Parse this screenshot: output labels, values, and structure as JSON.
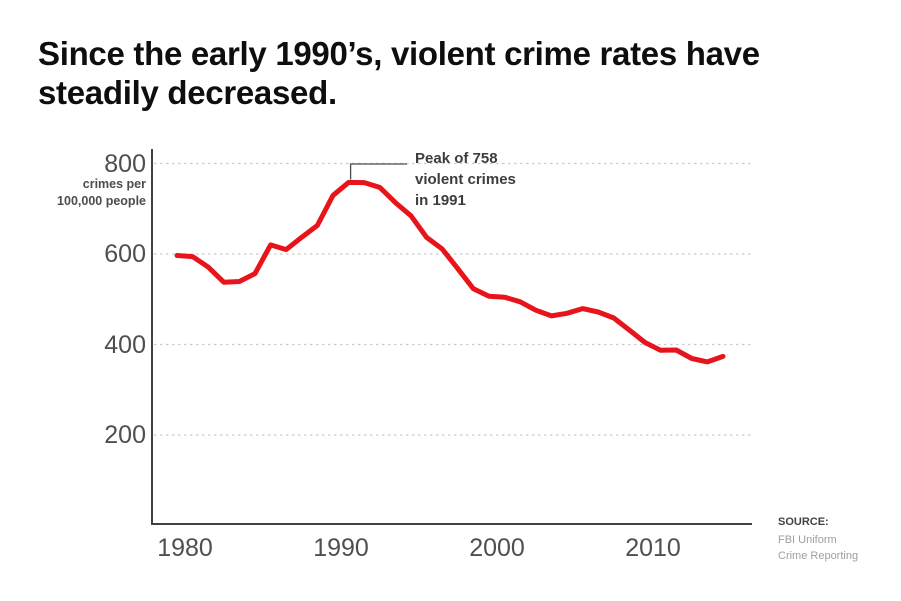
{
  "title": "Since the early 1990’s, violent crime rates have\nsteadily decreased.",
  "y_axis": {
    "unit_label": "crimes per\n100,000 people",
    "tick_labels": [
      "800",
      "600",
      "400",
      "200"
    ]
  },
  "x_axis": {
    "tick_labels": [
      "1980",
      "1990",
      "2000",
      "2010"
    ]
  },
  "annotation": {
    "text": "Peak of 758\nviolent crimes\nin 1991",
    "anchor_year": 1991,
    "anchor_value": 758.2
  },
  "source": {
    "label": "SOURCE:",
    "text": "FBI Uniform\nCrime Reporting"
  },
  "colors": {
    "line_red": "#e8141b",
    "grid_gray": "#cbcbcb",
    "axis_dark": "#404040",
    "leader_line": "#4a4a4a",
    "tick_text": "#4f4f4f",
    "title_text": "#0e0e0e",
    "annotation_text": "#3d3d3d",
    "source_text": "#9e9e9e"
  },
  "chart_data": {
    "type": "line",
    "title": "Since the early 1990’s, violent crime rates have steadily decreased.",
    "ylabel": "crimes per 100,000 people",
    "xlabel": "",
    "series_name": "Violent crime rate per 100,000 people",
    "x": [
      1980,
      1981,
      1982,
      1983,
      1984,
      1985,
      1986,
      1987,
      1988,
      1989,
      1990,
      1991,
      1992,
      1993,
      1994,
      1995,
      1996,
      1997,
      1998,
      1999,
      2000,
      2001,
      2002,
      2003,
      2004,
      2005,
      2006,
      2007,
      2008,
      2009,
      2010,
      2011,
      2012,
      2013,
      2014,
      2015
    ],
    "values": [
      596.6,
      594.3,
      571.1,
      537.7,
      539.2,
      556.6,
      620.1,
      609.7,
      637.2,
      663.1,
      729.6,
      758.2,
      757.7,
      747.1,
      713.6,
      684.5,
      636.6,
      611.0,
      567.6,
      523.0,
      506.5,
      504.5,
      494.4,
      475.8,
      463.2,
      469.0,
      479.3,
      471.8,
      458.6,
      431.9,
      404.5,
      387.1,
      387.8,
      369.1,
      361.6,
      373.7
    ],
    "yticks": [
      200,
      400,
      600,
      800
    ],
    "xticks": [
      1980,
      1990,
      2000,
      2010
    ],
    "xlim": [
      1979.5,
      2016.8
    ],
    "ylim": [
      0,
      830
    ],
    "grid": "horizontal dashed",
    "legend": "none",
    "annotation": "Peak of 758 violent crimes in 1991",
    "source": "SOURCE: FBI Uniform Crime Reporting"
  }
}
